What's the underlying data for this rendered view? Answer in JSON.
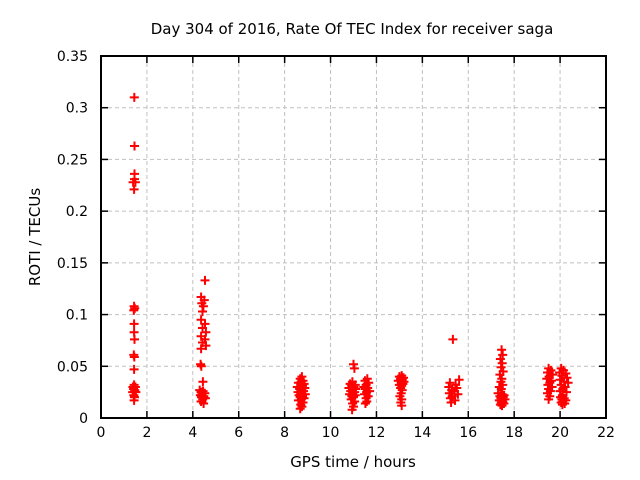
{
  "chart_data": {
    "type": "scatter",
    "title": "Day 304 of 2016, Rate Of TEC Index for receiver saga",
    "xlabel": "GPS time / hours",
    "ylabel": "ROTI / TECUs",
    "xlim": [
      0,
      22
    ],
    "ylim": [
      0,
      0.35
    ],
    "xticks": [
      "0",
      "2",
      "4",
      "6",
      "8",
      "10",
      "12",
      "14",
      "16",
      "18",
      "20",
      "22"
    ],
    "yticks": [
      "0",
      "0.05",
      "0.1",
      "0.15",
      "0.2",
      "0.25",
      "0.3",
      "0.35"
    ],
    "grid": {
      "visible": true,
      "style": "dashed",
      "color": "#c0c0c0"
    },
    "frame_color": "#000000",
    "marker": {
      "shape": "plus",
      "color": "#ff0000",
      "size": 9
    },
    "legend": "none",
    "points": [
      [
        1.45,
        0.31
      ],
      [
        1.46,
        0.263
      ],
      [
        1.46,
        0.236
      ],
      [
        1.46,
        0.231
      ],
      [
        1.4,
        0.228
      ],
      [
        1.5,
        0.228
      ],
      [
        1.44,
        0.221
      ],
      [
        1.44,
        0.108
      ],
      [
        1.47,
        0.106
      ],
      [
        1.43,
        0.104
      ],
      [
        1.44,
        0.091
      ],
      [
        1.44,
        0.083
      ],
      [
        1.46,
        0.076
      ],
      [
        1.43,
        0.061
      ],
      [
        1.45,
        0.059
      ],
      [
        1.44,
        0.047
      ],
      [
        1.44,
        0.032
      ],
      [
        1.39,
        0.03
      ],
      [
        1.5,
        0.03
      ],
      [
        1.42,
        0.028
      ],
      [
        1.47,
        0.027
      ],
      [
        1.38,
        0.025
      ],
      [
        1.52,
        0.025
      ],
      [
        1.43,
        0.022
      ],
      [
        1.46,
        0.02
      ],
      [
        1.44,
        0.017
      ],
      [
        4.53,
        0.133
      ],
      [
        4.36,
        0.117
      ],
      [
        4.5,
        0.114
      ],
      [
        4.39,
        0.111
      ],
      [
        4.46,
        0.108
      ],
      [
        4.42,
        0.103
      ],
      [
        4.36,
        0.095
      ],
      [
        4.53,
        0.091
      ],
      [
        4.42,
        0.087
      ],
      [
        4.57,
        0.083
      ],
      [
        4.36,
        0.079
      ],
      [
        4.53,
        0.076
      ],
      [
        4.42,
        0.073
      ],
      [
        4.57,
        0.07
      ],
      [
        4.36,
        0.067
      ],
      [
        4.34,
        0.052
      ],
      [
        4.37,
        0.05
      ],
      [
        4.44,
        0.035
      ],
      [
        4.3,
        0.027
      ],
      [
        4.45,
        0.026
      ],
      [
        4.36,
        0.025
      ],
      [
        4.52,
        0.024
      ],
      [
        4.4,
        0.023
      ],
      [
        4.33,
        0.022
      ],
      [
        4.48,
        0.021
      ],
      [
        4.38,
        0.02
      ],
      [
        4.55,
        0.019
      ],
      [
        4.43,
        0.018
      ],
      [
        4.36,
        0.016
      ],
      [
        4.47,
        0.014
      ],
      [
        8.75,
        0.04
      ],
      [
        8.68,
        0.038
      ],
      [
        8.8,
        0.036
      ],
      [
        8.72,
        0.035
      ],
      [
        8.6,
        0.034
      ],
      [
        8.85,
        0.033
      ],
      [
        8.7,
        0.032
      ],
      [
        8.78,
        0.031
      ],
      [
        8.55,
        0.03
      ],
      [
        8.88,
        0.029
      ],
      [
        8.65,
        0.028
      ],
      [
        8.75,
        0.027
      ],
      [
        8.82,
        0.026
      ],
      [
        8.58,
        0.025
      ],
      [
        8.7,
        0.024
      ],
      [
        8.9,
        0.023
      ],
      [
        8.63,
        0.022
      ],
      [
        8.78,
        0.021
      ],
      [
        8.68,
        0.02
      ],
      [
        8.85,
        0.019
      ],
      [
        8.73,
        0.018
      ],
      [
        8.6,
        0.017
      ],
      [
        8.8,
        0.015
      ],
      [
        8.7,
        0.013
      ],
      [
        8.75,
        0.011
      ],
      [
        8.68,
        0.009
      ],
      [
        11.0,
        0.052
      ],
      [
        11.04,
        0.048
      ],
      [
        10.95,
        0.035
      ],
      [
        10.85,
        0.033
      ],
      [
        11.08,
        0.032
      ],
      [
        10.92,
        0.031
      ],
      [
        11.02,
        0.03
      ],
      [
        10.8,
        0.029
      ],
      [
        11.1,
        0.028
      ],
      [
        10.95,
        0.027
      ],
      [
        10.88,
        0.026
      ],
      [
        11.05,
        0.025
      ],
      [
        10.97,
        0.024
      ],
      [
        10.83,
        0.023
      ],
      [
        11.08,
        0.022
      ],
      [
        10.93,
        0.021
      ],
      [
        11.0,
        0.02
      ],
      [
        10.9,
        0.018
      ],
      [
        11.05,
        0.016
      ],
      [
        10.96,
        0.014
      ],
      [
        11.0,
        0.011
      ],
      [
        10.94,
        0.008
      ],
      [
        11.6,
        0.038
      ],
      [
        11.5,
        0.036
      ],
      [
        11.66,
        0.034
      ],
      [
        11.55,
        0.032
      ],
      [
        11.45,
        0.03
      ],
      [
        11.62,
        0.029
      ],
      [
        11.52,
        0.028
      ],
      [
        11.7,
        0.026
      ],
      [
        11.57,
        0.025
      ],
      [
        11.48,
        0.023
      ],
      [
        11.64,
        0.021
      ],
      [
        11.55,
        0.019
      ],
      [
        11.58,
        0.016
      ],
      [
        11.52,
        0.014
      ],
      [
        13.1,
        0.041
      ],
      [
        13.0,
        0.04
      ],
      [
        13.18,
        0.039
      ],
      [
        13.05,
        0.038
      ],
      [
        13.12,
        0.037
      ],
      [
        12.95,
        0.036
      ],
      [
        13.2,
        0.035
      ],
      [
        13.08,
        0.034
      ],
      [
        13.15,
        0.033
      ],
      [
        13.0,
        0.032
      ],
      [
        13.1,
        0.031
      ],
      [
        13.05,
        0.029
      ],
      [
        13.12,
        0.027
      ],
      [
        13.08,
        0.024
      ],
      [
        13.02,
        0.021
      ],
      [
        13.1,
        0.018
      ],
      [
        13.06,
        0.015
      ],
      [
        13.1,
        0.012
      ],
      [
        15.33,
        0.076
      ],
      [
        15.6,
        0.037
      ],
      [
        15.2,
        0.034
      ],
      [
        15.45,
        0.032
      ],
      [
        15.15,
        0.03
      ],
      [
        15.5,
        0.029
      ],
      [
        15.28,
        0.027
      ],
      [
        15.4,
        0.026
      ],
      [
        15.18,
        0.024
      ],
      [
        15.55,
        0.023
      ],
      [
        15.3,
        0.021
      ],
      [
        15.22,
        0.019
      ],
      [
        15.42,
        0.017
      ],
      [
        15.25,
        0.015
      ],
      [
        17.45,
        0.066
      ],
      [
        17.5,
        0.061
      ],
      [
        17.4,
        0.057
      ],
      [
        17.48,
        0.053
      ],
      [
        17.43,
        0.049
      ],
      [
        17.52,
        0.045
      ],
      [
        17.38,
        0.042
      ],
      [
        17.46,
        0.038
      ],
      [
        17.42,
        0.035
      ],
      [
        17.5,
        0.032
      ],
      [
        17.35,
        0.03
      ],
      [
        17.44,
        0.028
      ],
      [
        17.3,
        0.024
      ],
      [
        17.48,
        0.023
      ],
      [
        17.56,
        0.022
      ],
      [
        17.38,
        0.021
      ],
      [
        17.52,
        0.02
      ],
      [
        17.42,
        0.019
      ],
      [
        17.6,
        0.018
      ],
      [
        17.35,
        0.017
      ],
      [
        17.5,
        0.016
      ],
      [
        17.44,
        0.015
      ],
      [
        17.55,
        0.014
      ],
      [
        17.4,
        0.013
      ],
      [
        17.47,
        0.012
      ],
      [
        19.5,
        0.048
      ],
      [
        19.6,
        0.046
      ],
      [
        19.45,
        0.044
      ],
      [
        19.68,
        0.042
      ],
      [
        19.52,
        0.04
      ],
      [
        19.42,
        0.038
      ],
      [
        19.62,
        0.036
      ],
      [
        19.55,
        0.034
      ],
      [
        19.47,
        0.032
      ],
      [
        19.65,
        0.03
      ],
      [
        19.5,
        0.028
      ],
      [
        19.58,
        0.026
      ],
      [
        19.45,
        0.024
      ],
      [
        19.55,
        0.021
      ],
      [
        19.5,
        0.018
      ],
      [
        20.05,
        0.048
      ],
      [
        20.15,
        0.046
      ],
      [
        19.98,
        0.044
      ],
      [
        20.25,
        0.043
      ],
      [
        20.08,
        0.041
      ],
      [
        20.3,
        0.039
      ],
      [
        20.0,
        0.037
      ],
      [
        20.18,
        0.035
      ],
      [
        20.35,
        0.034
      ],
      [
        20.05,
        0.032
      ],
      [
        20.22,
        0.03
      ],
      [
        20.12,
        0.028
      ],
      [
        20.0,
        0.026
      ],
      [
        20.28,
        0.025
      ],
      [
        20.1,
        0.022
      ],
      [
        20.02,
        0.02
      ],
      [
        20.18,
        0.019
      ],
      [
        20.08,
        0.018
      ],
      [
        20.25,
        0.017
      ],
      [
        20.12,
        0.016
      ],
      [
        20.05,
        0.015
      ],
      [
        20.2,
        0.014
      ],
      [
        20.1,
        0.013
      ]
    ]
  }
}
